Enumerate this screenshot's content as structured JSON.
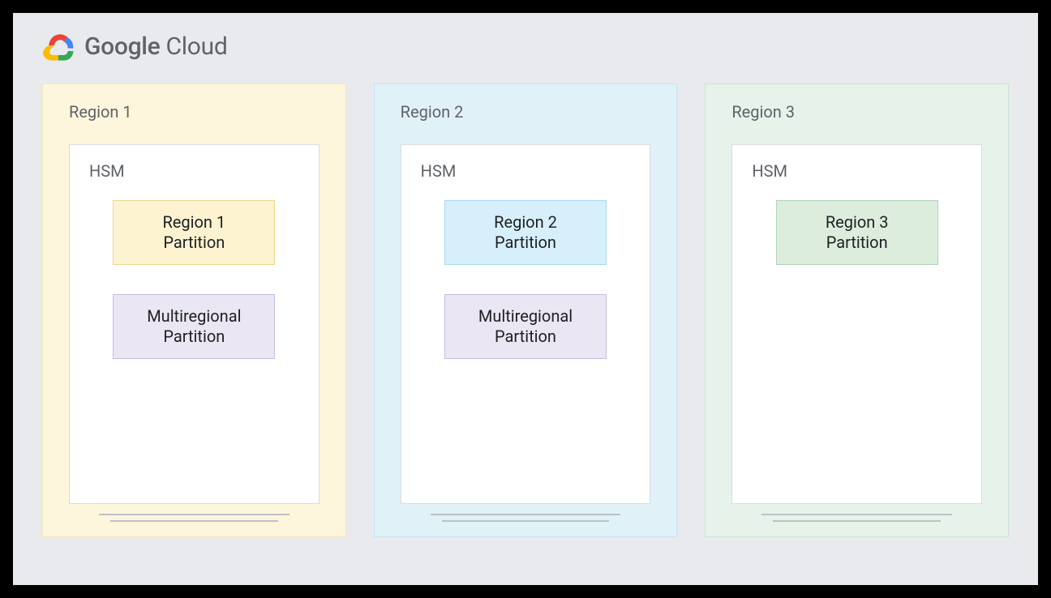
{
  "brand": {
    "google": "Google",
    "cloud": " Cloud"
  },
  "multiregional": {
    "line1": "Multiregional",
    "line2": "Partition",
    "bg": "#eae6f4",
    "border": "#c9bde0"
  },
  "regions": [
    {
      "label": "Region 1",
      "bg": "#fdf6dd",
      "border": "#f1e7b6",
      "hsm_label": "HSM",
      "partition": {
        "line1": "Region 1",
        "line2": "Partition",
        "bg": "#fdf3d0",
        "border": "#e7d98f"
      },
      "has_multiregional": true
    },
    {
      "label": "Region 2",
      "bg": "#e1f1f8",
      "border": "#c4e3f1",
      "hsm_label": "HSM",
      "partition": {
        "line1": "Region 2",
        "line2": "Partition",
        "bg": "#d6effb",
        "border": "#a8d9ee"
      },
      "has_multiregional": true
    },
    {
      "label": "Region 3",
      "bg": "#e6f2ea",
      "border": "#cde4d4",
      "hsm_label": "HSM",
      "partition": {
        "line1": "Region 3",
        "line2": "Partition",
        "bg": "#dcedde",
        "border": "#b2d4b8"
      },
      "has_multiregional": false
    }
  ]
}
